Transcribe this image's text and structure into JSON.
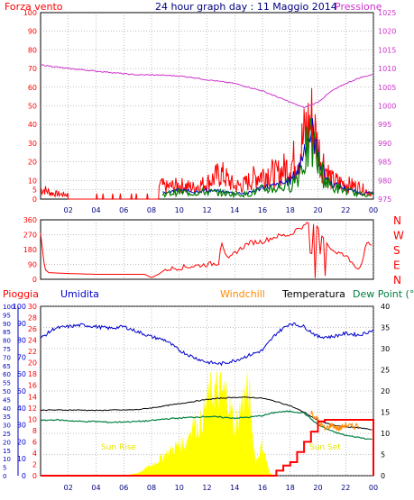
{
  "title": "24 hour graph day : 11 Maggio 2014",
  "colors": {
    "wind": "#ff0000",
    "gust": "#ff0000",
    "avgwind": "#0000cc",
    "windgreen": "#008000",
    "pressure": "#cc33cc",
    "humidity": "#0000cc",
    "temperature": "#000000",
    "dewpoint": "#008040",
    "windchill": "#ff8800",
    "rain": "#ff0000",
    "solar": "#ffff00",
    "grid": "#808080",
    "axis": "#000000"
  },
  "chart_data": [
    {
      "type": "line",
      "panel": "wind-pressure",
      "left_label": "Forza vento",
      "right_label": "Pressione",
      "x_ticks": [
        "02",
        "04",
        "06",
        "08",
        "10",
        "12",
        "14",
        "16",
        "18",
        "20",
        "22",
        "00"
      ],
      "ylim_left": [
        0,
        100
      ],
      "yticks_left": [
        "0",
        "5",
        "10",
        "20",
        "30",
        "40",
        "50",
        "60",
        "70",
        "80",
        "90",
        "100"
      ],
      "ylim_right": [
        975,
        1025
      ],
      "yticks_right": [
        "975",
        "980",
        "985",
        "990",
        "995",
        "1000",
        "1005",
        "1010",
        "1015",
        "1020",
        "1025"
      ],
      "pressure": {
        "x": [
          0,
          1,
          2,
          3,
          4,
          5,
          6,
          7,
          8,
          9,
          10,
          11,
          12,
          13,
          14,
          15,
          16,
          17,
          18,
          19,
          20,
          21,
          22,
          23,
          24
        ],
        "y": [
          1011,
          1010.5,
          1010,
          1009.7,
          1009.3,
          1009,
          1008.6,
          1008.3,
          1008.3,
          1008.2,
          1008,
          1007.6,
          1007,
          1006.5,
          1006,
          1005,
          1004,
          1002.5,
          1001,
          999.5,
          1001,
          1004,
          1006,
          1007.5,
          1008.5
        ]
      },
      "wind_gust_peaks": {
        "x": [
          0.3,
          0.8,
          1.6,
          3.4,
          5.6,
          8.6,
          9.0,
          10.0,
          11.0,
          12.0,
          13.0,
          14.0,
          14.6,
          15.6,
          16.4,
          17.0,
          18.0,
          18.6,
          19.2,
          19.6,
          20.0,
          20.5,
          21.0,
          22.0,
          23.0,
          23.8
        ],
        "y": [
          8,
          5,
          4,
          4,
          3,
          13,
          10,
          12,
          10,
          14,
          22,
          11,
          12,
          20,
          23,
          21,
          29,
          38,
          60,
          67,
          42,
          28,
          16,
          13,
          10,
          5
        ]
      },
      "wind_avg_peaks": {
        "x": [
          9.0,
          10.0,
          11.0,
          12.0,
          13.0,
          14.0,
          15.0,
          16.0,
          17.0,
          18.0,
          18.6,
          19.2,
          19.6,
          20.0,
          20.5,
          21.0,
          22.0,
          23.0
        ],
        "y": [
          4,
          6,
          5,
          6,
          5,
          4,
          4,
          8,
          9,
          12,
          20,
          40,
          45,
          30,
          16,
          10,
          7,
          4
        ]
      }
    },
    {
      "type": "line",
      "panel": "wind-direction",
      "ylim": [
        0,
        360
      ],
      "yticks": [
        "0",
        "90",
        "180",
        "270",
        "360"
      ],
      "right_labels": [
        "N",
        "W",
        "S",
        "E",
        "N"
      ],
      "x": [
        0,
        0.3,
        0.6,
        2,
        4,
        6,
        7.5,
        8,
        8.5,
        9,
        10,
        11,
        12,
        12.9,
        13,
        13.5,
        14,
        15,
        16,
        17,
        18,
        18.6,
        19.5,
        20,
        21,
        22,
        23,
        23.5
      ],
      "y": [
        280,
        60,
        40,
        35,
        30,
        30,
        30,
        10,
        30,
        60,
        70,
        80,
        90,
        100,
        250,
        110,
        160,
        220,
        230,
        260,
        270,
        310,
        340,
        300,
        180,
        140,
        60,
        210
      ]
    },
    {
      "type": "line",
      "panel": "rain-hum-temp",
      "labels": [
        "Pioggia",
        "Umidita",
        "Windchill",
        "Temperatura",
        "Dew Point (°C"
      ],
      "x_ticks": [
        "02",
        "04",
        "06",
        "08",
        "10",
        "12",
        "14",
        "16",
        "18",
        "20",
        "22",
        "00"
      ],
      "ylim_rain": [
        0,
        100
      ],
      "yticks_rain": [
        "0",
        "5",
        "10",
        "15",
        "20",
        "25",
        "30",
        "35",
        "40",
        "45",
        "50",
        "55",
        "60",
        "65",
        "70",
        "75",
        "80",
        "85",
        "90",
        "95",
        "100"
      ],
      "yticks_humidity": [
        "0",
        "10",
        "20",
        "30",
        "40",
        "50",
        "60",
        "70",
        "80",
        "90",
        "100"
      ],
      "yticks_mid": [
        "0",
        "2",
        "4",
        "6",
        "8",
        "10",
        "12",
        "14",
        "16",
        "18",
        "20",
        "22",
        "24",
        "26",
        "28",
        "30"
      ],
      "yticks_temp": [
        "0",
        "5",
        "10",
        "15",
        "20",
        "25",
        "30",
        "35",
        "40"
      ],
      "humidity": {
        "x": [
          0,
          1,
          2,
          3,
          4,
          5,
          6,
          7,
          8,
          9,
          10,
          11,
          12,
          13,
          14,
          15,
          16,
          17,
          18,
          19,
          20,
          21,
          22,
          23,
          24
        ],
        "y": [
          81,
          87,
          88,
          89,
          88,
          87,
          88,
          85,
          82,
          80,
          74,
          70,
          67,
          66,
          68,
          71,
          74,
          84,
          90,
          88,
          82,
          82,
          84,
          83,
          86
        ]
      },
      "temperature": {
        "x": [
          0,
          1,
          2,
          3,
          4,
          5,
          6,
          7,
          8,
          9,
          10,
          11,
          12,
          13,
          14,
          15,
          16,
          17,
          18,
          19,
          20,
          21,
          22,
          23,
          24
        ],
        "y": [
          15.5,
          15.5,
          15.5,
          15.5,
          15.4,
          15.5,
          15.5,
          15.6,
          16,
          16.5,
          17,
          17.5,
          18,
          18.3,
          18.5,
          18.5,
          18.3,
          17.5,
          16.5,
          15,
          13,
          12,
          11.5,
          11.3,
          10.8
        ]
      },
      "dewpoint": {
        "x": [
          0,
          1,
          2,
          3,
          4,
          5,
          6,
          7,
          8,
          9,
          10,
          11,
          12,
          13,
          14,
          15,
          16,
          17,
          18,
          19,
          20,
          21,
          22,
          23,
          24
        ],
        "y": [
          13,
          13.2,
          13,
          12.8,
          12.8,
          12.6,
          12.7,
          12.8,
          13,
          13.4,
          13.6,
          13.8,
          14,
          13.8,
          13.6,
          13.8,
          14.2,
          15,
          15.2,
          14.8,
          12,
          10.5,
          9.5,
          9,
          8.5
        ]
      },
      "windchill": {
        "x": [
          19.5,
          20,
          20.5,
          21,
          21.5,
          22,
          22.5,
          23
        ],
        "y": [
          15,
          13,
          11,
          12,
          11,
          12,
          11.5,
          12
        ]
      },
      "rain": {
        "x": [
          0,
          16.5,
          17,
          17.5,
          18,
          18.5,
          19,
          19.5,
          20,
          20.5,
          21,
          21.5,
          22,
          22.5,
          23,
          23.8,
          24
        ],
        "y": [
          0,
          0,
          3,
          6,
          8,
          14,
          20,
          26,
          32,
          33,
          33,
          33,
          33,
          33,
          33,
          33,
          0
        ]
      },
      "solar": {
        "x": [
          0,
          6,
          7,
          8,
          9,
          10,
          10.5,
          11,
          11.5,
          12,
          12.5,
          13,
          13.5,
          14,
          14.5,
          15,
          15.5,
          16,
          16.5,
          17,
          18,
          24
        ],
        "y": [
          0,
          0,
          2,
          8,
          16,
          24,
          26,
          42,
          38,
          58,
          66,
          64,
          62,
          36,
          56,
          66,
          10,
          24,
          2,
          0,
          0,
          0
        ]
      },
      "annotations": [
        "Sun Rise",
        "Sun Set"
      ]
    }
  ]
}
